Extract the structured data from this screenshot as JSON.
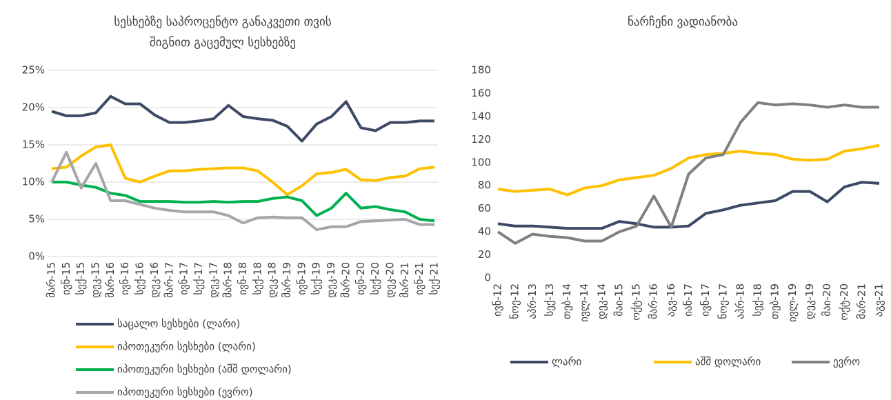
{
  "chart_data": [
    {
      "type": "line",
      "title": [
        "სესხებზე საპროცენტო განაკვეთი თვის",
        "შიგნით გაცემულ სესხებზე"
      ],
      "categories": [
        "მარ-15",
        "ივნ-15",
        "სექ-15",
        "დეკ-15",
        "მარ-16",
        "ივნ-16",
        "სექ-16",
        "დეკ-16",
        "მარ-17",
        "ივნ-17",
        "სექ-17",
        "დეკ-17",
        "მარ-18",
        "ივნ-18",
        "სექ-18",
        "დეკ-18",
        "მარ-19",
        "ივნ-19",
        "სექ-19",
        "დეკ-19",
        "მარ-20",
        "ივნ-20",
        "სექ-20",
        "დეკ-20",
        "მარ-21",
        "ივნ-21",
        "სექ-21"
      ],
      "series": [
        {
          "name": "საცალო სესხები (ლარი)",
          "color": "#3d4a66",
          "values": [
            19.5,
            18.9,
            18.9,
            19.3,
            21.5,
            20.5,
            20.5,
            19.0,
            18.0,
            18.0,
            18.2,
            18.5,
            20.3,
            18.8,
            18.5,
            18.3,
            17.5,
            15.5,
            17.8,
            18.8,
            20.8,
            17.3,
            16.9,
            18.0,
            18.0,
            18.2,
            18.2
          ]
        },
        {
          "name": "იპოთეკური სესხები (ლარი)",
          "color": "#ffc000",
          "values": [
            11.8,
            12.0,
            13.5,
            14.7,
            15.0,
            10.5,
            10.0,
            10.8,
            11.5,
            11.5,
            11.7,
            11.8,
            11.9,
            11.9,
            11.5,
            10.0,
            8.3,
            9.5,
            11.1,
            11.3,
            11.7,
            10.3,
            10.2,
            10.6,
            10.8,
            11.8,
            12.0
          ]
        },
        {
          "name": "იპოთეკური სესხები (აშშ დოლარი)",
          "color": "#00b050",
          "values": [
            10.0,
            10.0,
            9.6,
            9.3,
            8.5,
            8.2,
            7.4,
            7.4,
            7.4,
            7.3,
            7.3,
            7.4,
            7.3,
            7.4,
            7.4,
            7.8,
            8.0,
            7.5,
            5.5,
            6.5,
            8.5,
            6.5,
            6.7,
            6.3,
            6.0,
            5.0,
            4.8
          ]
        },
        {
          "name": "იპოთეკური სესხები (ევრო)",
          "color": "#a6a6a6",
          "values": [
            10.0,
            14.0,
            9.2,
            12.5,
            7.5,
            7.5,
            7.0,
            6.5,
            6.2,
            6.0,
            6.0,
            6.0,
            5.5,
            4.5,
            5.2,
            5.3,
            5.2,
            5.2,
            3.6,
            4.0,
            4.0,
            4.7,
            4.8,
            4.9,
            5.0,
            4.3,
            4.3
          ]
        }
      ],
      "ylim": [
        0,
        25
      ],
      "yticks": [
        {
          "value": 0,
          "label": "0%"
        },
        {
          "value": 5,
          "label": "5%"
        },
        {
          "value": 10,
          "label": "10%"
        },
        {
          "value": 15,
          "label": "15%"
        },
        {
          "value": 20,
          "label": "20%"
        },
        {
          "value": 25,
          "label": "25%"
        }
      ],
      "grid": true,
      "legend": "bottom-left"
    },
    {
      "type": "line",
      "title": [
        "ნარჩენი ვადიანობა"
      ],
      "categories": [
        "ივნ-12",
        "ნოე-12",
        "აპრ-13",
        "სექ-13",
        "თებ-14",
        "ივლ-14",
        "დეკ-14",
        "მაი-15",
        "ოქტ-15",
        "მარ-16",
        "აგვ-16",
        "იან-17",
        "ივნ-17",
        "ნოე-17",
        "აპრ-18",
        "სექ-18",
        "თებ-19",
        "ივლ-19",
        "დეკ-19",
        "მაი-20",
        "ოქტ-20",
        "მარ-21",
        "აგვ-21"
      ],
      "series": [
        {
          "name": "ლარი",
          "color": "#3d4a66",
          "values": [
            47,
            45,
            45,
            44,
            43,
            43,
            43,
            49,
            47,
            44,
            44,
            45,
            56,
            59,
            63,
            65,
            67,
            75,
            75,
            66,
            79,
            83,
            82
          ]
        },
        {
          "name": "აშშ დოლარი",
          "color": "#ffc000",
          "values": [
            77,
            75,
            76,
            77,
            72,
            78,
            80,
            85,
            87,
            89,
            95,
            104,
            107,
            108,
            110,
            108,
            107,
            103,
            102,
            103,
            110,
            112,
            115
          ]
        },
        {
          "name": "ევრო",
          "color": "#808080",
          "values": [
            40,
            30,
            38,
            36,
            35,
            32,
            32,
            40,
            45,
            71,
            44,
            90,
            104,
            107,
            135,
            152,
            150,
            151,
            150,
            148,
            150,
            148,
            148
          ]
        }
      ],
      "ylim": [
        0,
        180
      ],
      "yticks": [
        0,
        20,
        40,
        60,
        80,
        100,
        120,
        140,
        160,
        180
      ],
      "grid": false,
      "legend": "bottom"
    }
  ]
}
